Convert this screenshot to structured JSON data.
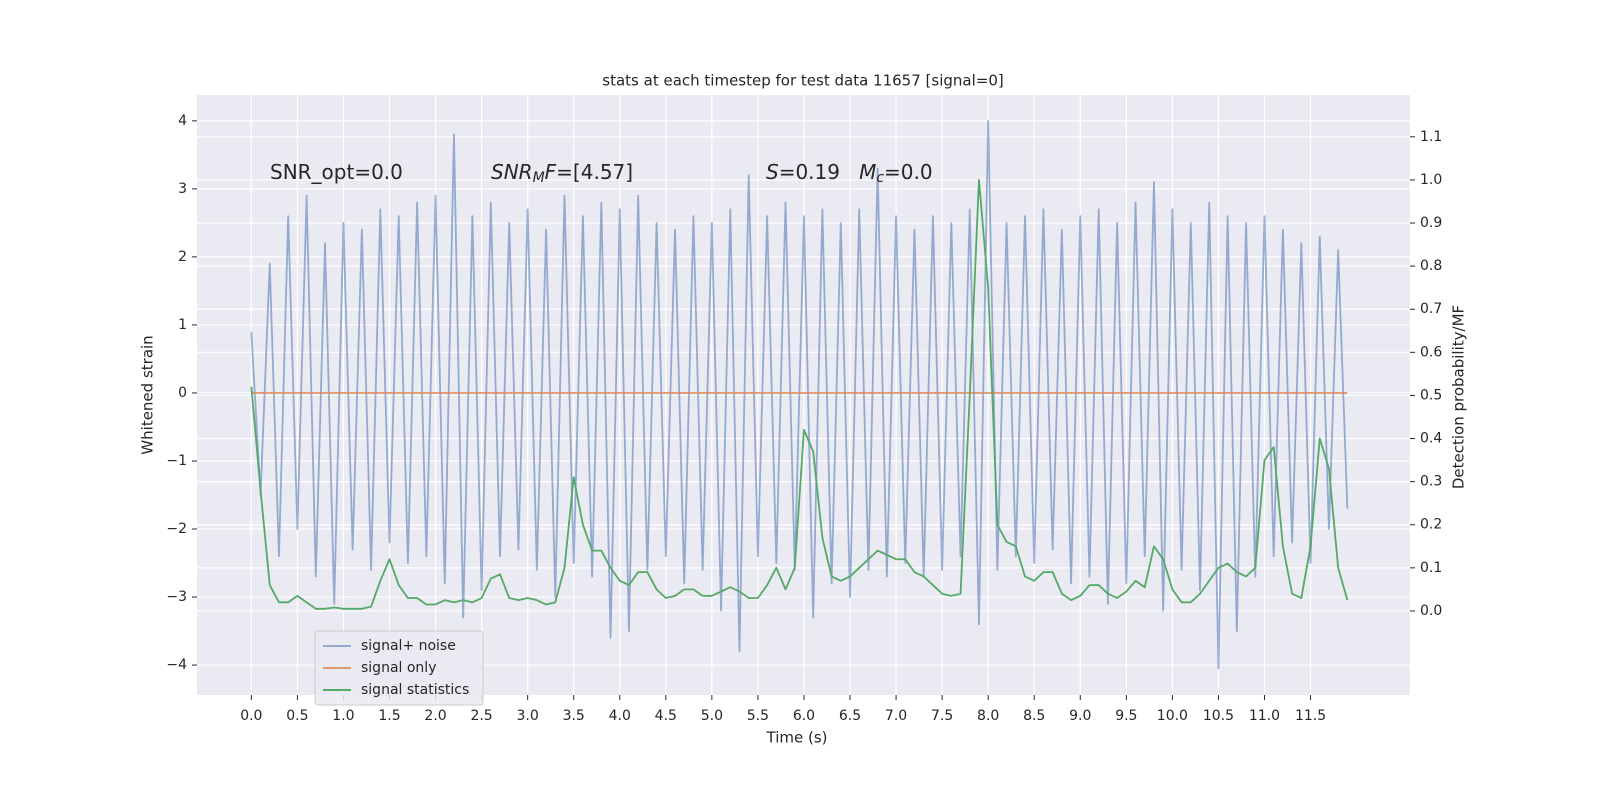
{
  "chart_data": {
    "type": "line",
    "title": "stats at each timestep for test data 11657 [signal=0]",
    "x_label": "Time (s)",
    "y_label": "Whitened strain",
    "y2_label": "Detection probability/MF",
    "x": [
      0,
      0.1,
      0.2,
      0.3,
      0.4,
      0.5,
      0.6,
      0.7,
      0.8,
      0.9,
      1,
      1.1,
      1.2,
      1.3,
      1.4,
      1.5,
      1.6,
      1.7,
      1.8,
      1.9,
      2,
      2.1,
      2.2,
      2.3,
      2.4,
      2.5,
      2.6,
      2.7,
      2.8,
      2.9,
      3,
      3.1,
      3.2,
      3.3,
      3.4,
      3.5,
      3.6,
      3.7,
      3.8,
      3.9,
      4,
      4.1,
      4.2,
      4.3,
      4.4,
      4.5,
      4.6,
      4.7,
      4.8,
      4.9,
      5,
      5.1,
      5.2,
      5.3,
      5.4,
      5.5,
      5.6,
      5.7,
      5.8,
      5.9,
      6,
      6.1,
      6.2,
      6.3,
      6.4,
      6.5,
      6.6,
      6.7,
      6.8,
      6.9,
      7,
      7.1,
      7.2,
      7.3,
      7.4,
      7.5,
      7.6,
      7.7,
      7.8,
      7.9,
      8,
      8.1,
      8.2,
      8.3,
      8.4,
      8.5,
      8.6,
      8.7,
      8.8,
      8.9,
      9,
      9.1,
      9.2,
      9.3,
      9.4,
      9.5,
      9.6,
      9.7,
      9.8,
      9.9,
      10,
      10.1,
      10.2,
      10.3,
      10.4,
      10.5,
      10.6,
      10.7,
      10.8,
      10.9,
      11,
      11.1,
      11.2,
      11.3,
      11.4,
      11.5,
      11.6,
      11.7,
      11.8,
      11.9
    ],
    "series": [
      {
        "name": "signal+ noise",
        "color": "#4c72b0",
        "opacity": 0.55,
        "values": [
          0.9,
          -1.5,
          1.9,
          -2.4,
          2.6,
          -2.0,
          2.9,
          -2.7,
          2.2,
          -3.1,
          2.5,
          -2.3,
          2.4,
          -2.6,
          2.7,
          -2.2,
          2.6,
          -2.5,
          2.8,
          -2.4,
          2.9,
          -2.8,
          3.8,
          -3.3,
          2.6,
          -2.9,
          2.8,
          -2.4,
          2.5,
          -2.3,
          2.7,
          -2.6,
          2.4,
          -3.0,
          2.9,
          -2.5,
          2.6,
          -2.7,
          2.8,
          -3.6,
          2.7,
          -3.5,
          2.9,
          -2.6,
          2.5,
          -2.4,
          2.4,
          -2.8,
          2.6,
          -2.6,
          2.5,
          -3.2,
          2.7,
          -3.8,
          3.2,
          -2.4,
          2.6,
          -2.5,
          2.8,
          -2.6,
          2.6,
          -3.3,
          2.7,
          -2.8,
          2.5,
          -3.0,
          2.7,
          -2.6,
          3.3,
          -2.7,
          2.6,
          -2.5,
          2.4,
          -2.7,
          2.6,
          -2.6,
          2.5,
          -2.4,
          2.7,
          -3.4,
          4.0,
          -2.6,
          2.5,
          -2.4,
          2.6,
          -2.5,
          2.7,
          -2.3,
          2.4,
          -2.8,
          2.6,
          -2.7,
          2.7,
          -3.1,
          2.5,
          -2.8,
          2.8,
          -2.4,
          3.1,
          -3.2,
          2.7,
          -2.6,
          2.5,
          -2.9,
          2.8,
          -4.05,
          2.6,
          -3.5,
          2.5,
          -2.7,
          2.6,
          -2.4,
          2.4,
          -2.2,
          2.2,
          -2.5,
          2.3,
          -2.0,
          2.1,
          -1.7
        ]
      },
      {
        "name": "signal only",
        "color": "#dd8452",
        "opacity": 0.8,
        "values": [
          0,
          0,
          0,
          0,
          0,
          0,
          0,
          0,
          0,
          0,
          0,
          0,
          0,
          0,
          0,
          0,
          0,
          0,
          0,
          0,
          0,
          0,
          0,
          0,
          0,
          0,
          0,
          0,
          0,
          0,
          0,
          0,
          0,
          0,
          0,
          0,
          0,
          0,
          0,
          0,
          0,
          0,
          0,
          0,
          0,
          0,
          0,
          0,
          0,
          0,
          0,
          0,
          0,
          0,
          0,
          0,
          0,
          0,
          0,
          0,
          0,
          0,
          0,
          0,
          0,
          0,
          0,
          0,
          0,
          0,
          0,
          0,
          0,
          0,
          0,
          0,
          0,
          0,
          0,
          0,
          0,
          0,
          0,
          0,
          0,
          0,
          0,
          0,
          0,
          0,
          0,
          0,
          0,
          0,
          0,
          0,
          0,
          0,
          0,
          0,
          0,
          0,
          0,
          0,
          0,
          0,
          0,
          0,
          0,
          0,
          0,
          0,
          0,
          0,
          0,
          0,
          0,
          0,
          0,
          0
        ]
      },
      {
        "name": "signal statistics",
        "color": "#55a868",
        "opacity": 1,
        "axis": "y2",
        "values": [
          0.52,
          0.28,
          0.06,
          0.02,
          0.02,
          0.035,
          0.02,
          0.005,
          0.005,
          0.008,
          0.005,
          0.005,
          0.005,
          0.01,
          0.07,
          0.12,
          0.06,
          0.03,
          0.03,
          0.015,
          0.015,
          0.025,
          0.02,
          0.025,
          0.02,
          0.03,
          0.075,
          0.085,
          0.03,
          0.025,
          0.03,
          0.025,
          0.015,
          0.02,
          0.1,
          0.31,
          0.2,
          0.14,
          0.14,
          0.1,
          0.07,
          0.06,
          0.09,
          0.09,
          0.05,
          0.03,
          0.035,
          0.05,
          0.05,
          0.035,
          0.035,
          0.045,
          0.055,
          0.045,
          0.03,
          0.03,
          0.06,
          0.1,
          0.05,
          0.1,
          0.42,
          0.37,
          0.17,
          0.08,
          0.07,
          0.08,
          0.1,
          0.12,
          0.14,
          0.13,
          0.12,
          0.12,
          0.09,
          0.08,
          0.06,
          0.04,
          0.035,
          0.04,
          0.5,
          1.0,
          0.75,
          0.2,
          0.16,
          0.15,
          0.08,
          0.07,
          0.09,
          0.09,
          0.04,
          0.025,
          0.035,
          0.06,
          0.06,
          0.04,
          0.03,
          0.045,
          0.07,
          0.055,
          0.15,
          0.12,
          0.05,
          0.02,
          0.02,
          0.04,
          0.07,
          0.1,
          0.11,
          0.09,
          0.08,
          0.1,
          0.35,
          0.38,
          0.15,
          0.04,
          0.03,
          0.15,
          0.4,
          0.33,
          0.1,
          0.025
        ]
      }
    ],
    "annotations": [
      {
        "parts": [
          {
            "text": "SNR_opt=0.0"
          }
        ]
      },
      {
        "parts": [
          {
            "text": "SNR",
            "style": "italic"
          },
          {
            "text": "M",
            "style": "italic-sub"
          },
          {
            "text": "F",
            "style": "italic"
          },
          {
            "text": "=[4.57]"
          }
        ]
      },
      {
        "parts": [
          {
            "text": "S",
            "style": "italic"
          },
          {
            "text": "=0.19   "
          },
          {
            "text": "M",
            "style": "italic"
          },
          {
            "text": "c",
            "style": "italic-sub"
          },
          {
            "text": "=0.0"
          }
        ]
      }
    ],
    "xlim": [
      -0.59,
      12.58
    ],
    "xticks": [
      {
        "value": 0,
        "label": "0.0"
      },
      0.5,
      {
        "value": 1,
        "label": "1.0"
      },
      1.5,
      {
        "value": 2,
        "label": "2.0"
      },
      2.5,
      {
        "value": 3,
        "label": "3.0"
      },
      3.5,
      {
        "value": 4,
        "label": "4.0"
      },
      4.5,
      {
        "value": 5,
        "label": "5.0"
      },
      5.5,
      {
        "value": 6,
        "label": "6.0"
      },
      6.5,
      {
        "value": 7,
        "label": "7.0"
      },
      7.5,
      {
        "value": 8,
        "label": "8.0"
      },
      8.5,
      {
        "value": 9,
        "label": "9.0"
      },
      9.5,
      {
        "value": 10,
        "label": "10.0"
      },
      10.5,
      {
        "value": 11,
        "label": "11.0"
      },
      11.5
    ],
    "ylim": [
      -4.44,
      4.38
    ],
    "yticks": [
      {
        "value": -4,
        "label": "−4"
      },
      {
        "value": -3,
        "label": "−3"
      },
      {
        "value": -2,
        "label": "−2"
      },
      {
        "value": -1,
        "label": "−1"
      },
      0,
      1,
      2,
      3,
      4
    ],
    "y2lim": [
      -0.195,
      1.197
    ],
    "y2ticks": [
      {
        "value": 0,
        "label": "0.0"
      },
      0.1,
      0.2,
      0.3,
      0.4,
      0.5,
      0.6,
      0.7,
      0.8,
      0.9,
      {
        "value": 1,
        "label": "1.0"
      },
      1.1
    ],
    "grid": true,
    "legend_loc": "lower left",
    "background": "#eaeaf2"
  }
}
